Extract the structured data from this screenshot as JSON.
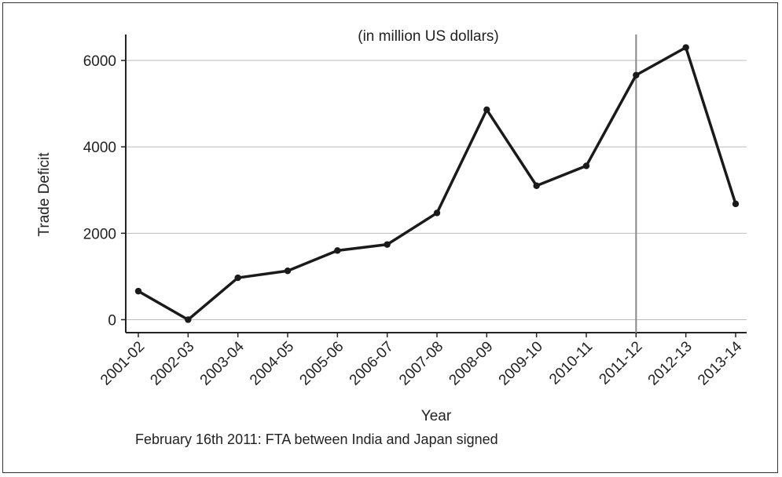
{
  "chart_data": {
    "type": "line",
    "subtitle": "(in million US dollars)",
    "xlabel": "Year",
    "ylabel": "Trade Deficit",
    "note": "February 16th 2011: FTA between India and Japan signed",
    "categories": [
      "2001-02",
      "2002-03",
      "2003-04",
      "2004-05",
      "2005-06",
      "2006-07",
      "2007-08",
      "2008-09",
      "2009-10",
      "2010-11",
      "2011-12",
      "2012-13",
      "2013-14"
    ],
    "series": [
      {
        "values": [
          660,
          0,
          970,
          1130,
          1600,
          1740,
          2470,
          4860,
          3100,
          3560,
          5660,
          6300,
          2680
        ]
      }
    ],
    "yticks": [
      "0",
      "2000",
      "4000",
      "6000"
    ],
    "ylim": [
      -300,
      6600
    ],
    "reference_line": {
      "category": "2011-12"
    },
    "grid": "horizontal",
    "colors": {
      "line": "#1a1a1a",
      "grid": "#bbbbbb",
      "reference": "#888888"
    }
  }
}
